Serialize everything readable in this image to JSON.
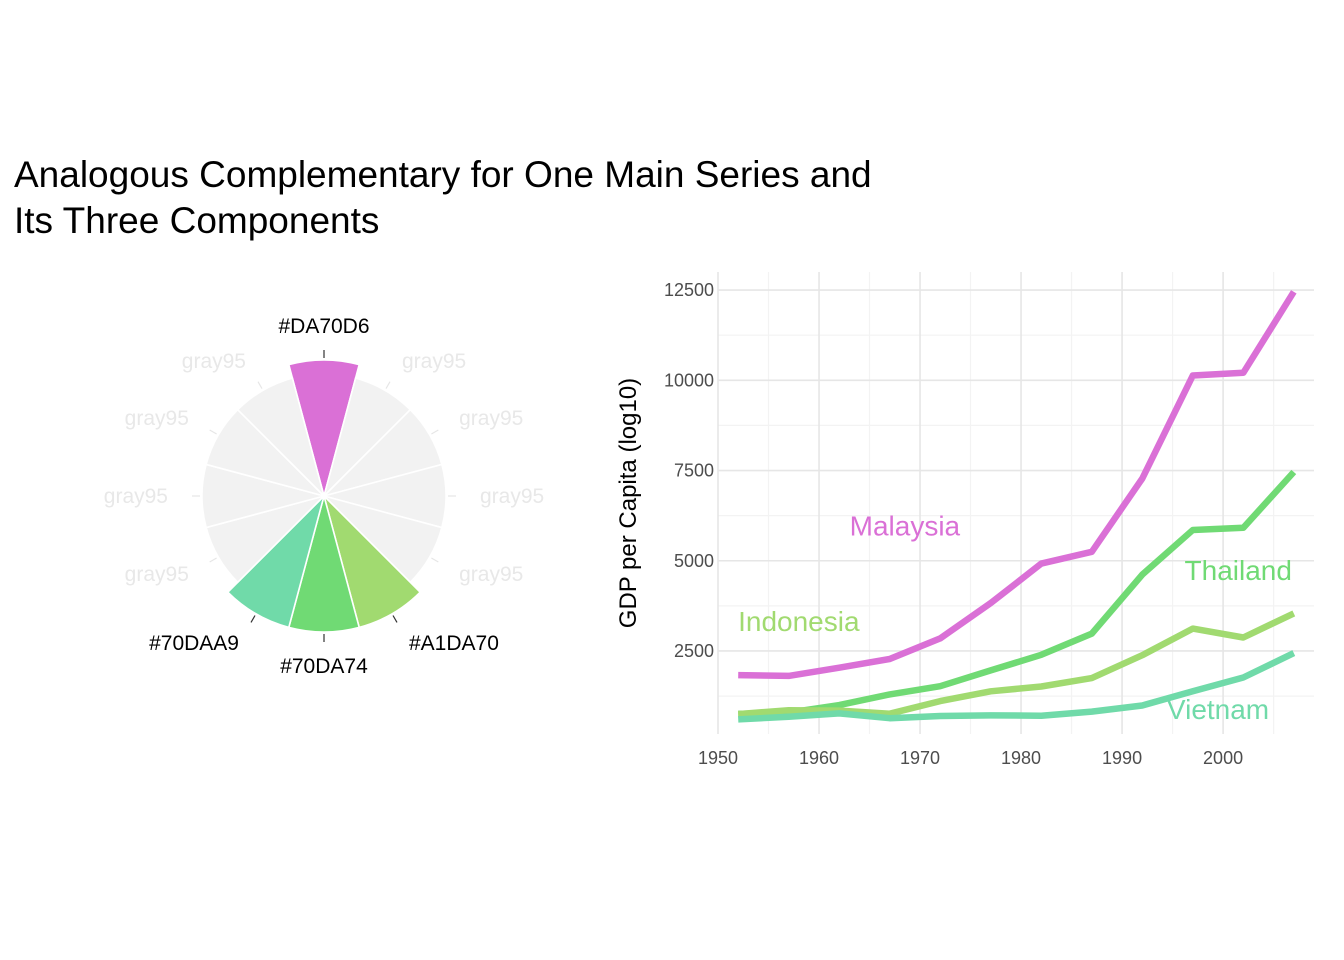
{
  "title": {
    "line1": "Analogous Complementary for One Main Series and",
    "line2": "Its Three Components"
  },
  "chart_data": [
    {
      "type": "pie",
      "description_labels": true,
      "slices": [
        {
          "label": "#DA70D6",
          "value": 1,
          "color": "#DA70D6"
        },
        {
          "label": "gray95",
          "value": 1,
          "color": "#F2F2F2"
        },
        {
          "label": "gray95",
          "value": 1,
          "color": "#F2F2F2"
        },
        {
          "label": "gray95",
          "value": 1,
          "color": "#F2F2F2"
        },
        {
          "label": "gray95",
          "value": 1,
          "color": "#F2F2F2"
        },
        {
          "label": "#A1DA70",
          "value": 1,
          "color": "#A1DA70"
        },
        {
          "label": "#70DA74",
          "value": 1,
          "color": "#70DA74"
        },
        {
          "label": "#70DAA9",
          "value": 1,
          "color": "#70DAA9"
        },
        {
          "label": "gray95",
          "value": 1,
          "color": "#F2F2F2"
        },
        {
          "label": "gray95",
          "value": 1,
          "color": "#F2F2F2"
        },
        {
          "label": "gray95",
          "value": 1,
          "color": "#F2F2F2"
        },
        {
          "label": "gray95",
          "value": 1,
          "color": "#F2F2F2"
        }
      ]
    },
    {
      "type": "line",
      "title": "",
      "xlabel": "",
      "ylabel": "GDP per Capita (log10)",
      "xlim": [
        1950,
        2009
      ],
      "ylim": [
        200,
        13000
      ],
      "xticks": [
        1950,
        1960,
        1970,
        1980,
        1990,
        2000
      ],
      "yticks": [
        2500,
        5000,
        7500,
        10000,
        12500
      ],
      "grid": true,
      "x": [
        1952,
        1957,
        1962,
        1967,
        1972,
        1977,
        1982,
        1987,
        1992,
        1997,
        2002,
        2007
      ],
      "series": [
        {
          "name": "Malaysia",
          "color": "#DA70D6",
          "values": [
            1831,
            1811,
            2037,
            2278,
            2849,
            3828,
            4920,
            5249,
            7278,
            10132,
            10207,
            12452
          ]
        },
        {
          "name": "Thailand",
          "color": "#70DA74",
          "values": [
            757,
            793,
            1002,
            1296,
            1524,
            1962,
            2393,
            2982,
            4616,
            5852,
            5913,
            7458
          ]
        },
        {
          "name": "Indonesia",
          "color": "#A1DA70",
          "values": [
            750,
            859,
            849,
            762,
            1111,
            1383,
            1517,
            1748,
            2383,
            3119,
            2874,
            3541
          ]
        },
        {
          "name": "Vietnam",
          "color": "#70DAA9",
          "values": [
            605,
            676,
            772,
            637,
            700,
            714,
            707,
            821,
            989,
            1386,
            1764,
            2442
          ]
        }
      ],
      "series_labels": [
        {
          "name": "Malaysia",
          "x": 1968.5,
          "y": 5700
        },
        {
          "name": "Thailand",
          "x": 2001.5,
          "y": 4470
        },
        {
          "name": "Indonesia",
          "x": 1958,
          "y": 3050
        },
        {
          "name": "Vietnam",
          "x": 1999.5,
          "y": 620
        }
      ]
    }
  ]
}
